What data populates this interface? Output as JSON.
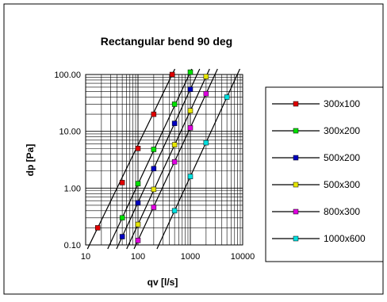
{
  "chart_data": {
    "type": "line",
    "title": "Rectangular bend 90 deg",
    "xlabel": "qv [l/s]",
    "ylabel": "dp [Pa]",
    "x_scale": "log",
    "y_scale": "log",
    "xlim": [
      10,
      10000
    ],
    "ylim": [
      0.1,
      100
    ],
    "x_tick_labels": [
      "10",
      "100",
      "1000",
      "10000"
    ],
    "y_tick_labels": [
      "0.10",
      "1.00",
      "10.00",
      "100.00"
    ],
    "grid": true,
    "legend_position": "right",
    "series": [
      {
        "name": "300x100",
        "color": "#e00000",
        "points": [
          [
            17,
            0.2
          ],
          [
            50,
            1.25
          ],
          [
            100,
            5.0
          ],
          [
            200,
            20.0
          ],
          [
            450,
            100.0
          ]
        ]
      },
      {
        "name": "300x200",
        "color": "#00e000",
        "points": [
          [
            50,
            0.3
          ],
          [
            100,
            1.2
          ],
          [
            200,
            4.8
          ],
          [
            500,
            30.0
          ],
          [
            1000,
            110.0
          ]
        ]
      },
      {
        "name": "500x200",
        "color": "#0000c0",
        "points": [
          [
            50,
            0.14
          ],
          [
            100,
            0.55
          ],
          [
            200,
            2.2
          ],
          [
            500,
            13.8
          ],
          [
            1000,
            55.0
          ]
        ]
      },
      {
        "name": "500x300",
        "color": "#e6e600",
        "points": [
          [
            100,
            0.23
          ],
          [
            200,
            0.95
          ],
          [
            500,
            5.8
          ],
          [
            1000,
            23.0
          ],
          [
            2000,
            92.0
          ]
        ]
      },
      {
        "name": "800x300",
        "color": "#e000e0",
        "points": [
          [
            100,
            0.12
          ],
          [
            200,
            0.46
          ],
          [
            500,
            2.9
          ],
          [
            1000,
            11.5
          ],
          [
            2000,
            46.0
          ]
        ]
      },
      {
        "name": "1000x600",
        "color": "#00e0e0",
        "points": [
          [
            500,
            0.4
          ],
          [
            1000,
            1.6
          ],
          [
            2000,
            6.3
          ],
          [
            5000,
            40.0
          ]
        ]
      }
    ]
  }
}
